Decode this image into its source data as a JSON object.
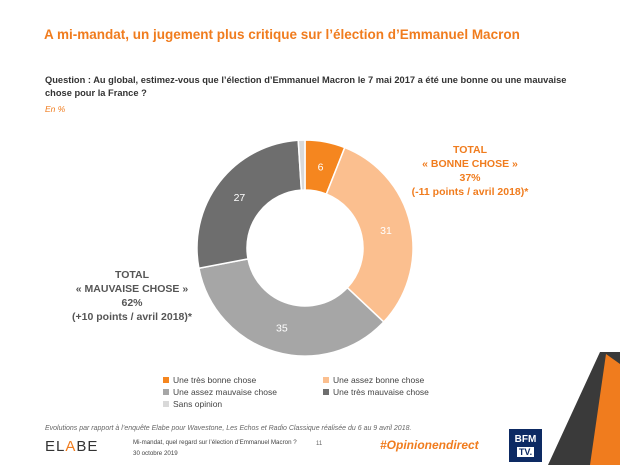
{
  "title": "A mi-mandat, un jugement plus critique sur l’élection d’Emmanuel Macron",
  "question": "Question : Au global, estimez-vous que l’élection d’Emmanuel Macron le 7 mai 2017 a été une bonne ou une mauvaise chose pour la France ?",
  "unit": "En %",
  "callout_good": {
    "line1": "TOTAL",
    "line2": "« BONNE CHOSE »",
    "line3": "37%",
    "line4": "(-11 points / avril 2018)*"
  },
  "callout_bad": {
    "line1": "TOTAL",
    "line2": "« MAUVAISE CHOSE »",
    "line3": "62%",
    "line4": "(+10 points / avril 2018)*"
  },
  "chart_data": {
    "type": "pie",
    "variant": "donut",
    "title": "",
    "categories": [
      "Une très bonne chose",
      "Une assez bonne chose",
      "Une assez mauvaise chose",
      "Une très mauvaise chose",
      "Sans opinion"
    ],
    "values": [
      6,
      31,
      35,
      27,
      1
    ],
    "data_labels": [
      "6",
      "31",
      "35",
      "27",
      ""
    ],
    "colors": [
      "#f5861f",
      "#fbbf8f",
      "#a6a6a6",
      "#6e6e6e",
      "#d9d9d9"
    ],
    "legend_position": "bottom"
  },
  "legend": {
    "items": [
      {
        "label": "Une très bonne chose",
        "color": "#f5861f"
      },
      {
        "label": "Une assez bonne chose",
        "color": "#fbbf8f"
      },
      {
        "label": "Une assez mauvaise chose",
        "color": "#a6a6a6"
      },
      {
        "label": "Une très mauvaise chose",
        "color": "#6e6e6e"
      },
      {
        "label": "Sans opinion",
        "color": "#d9d9d9"
      }
    ]
  },
  "footnote": "Evolutions par rapport à l’enquête Elabe pour Wavestone, Les Echos et Radio Classique réalisée du 6 au 9 avril 2018.",
  "footer": {
    "logo_part1": "EL",
    "logo_part2": "A",
    "logo_part3": "BE",
    "caption_line1": "Mi-mandat, quel regard sur l’élection d’Emmanuel Macron ?",
    "caption_line2": "30 octobre 2019",
    "page_number": "11",
    "hashtag": "#Opinionendirect",
    "bfm_line1": "BFM",
    "bfm_line2": "TV."
  }
}
